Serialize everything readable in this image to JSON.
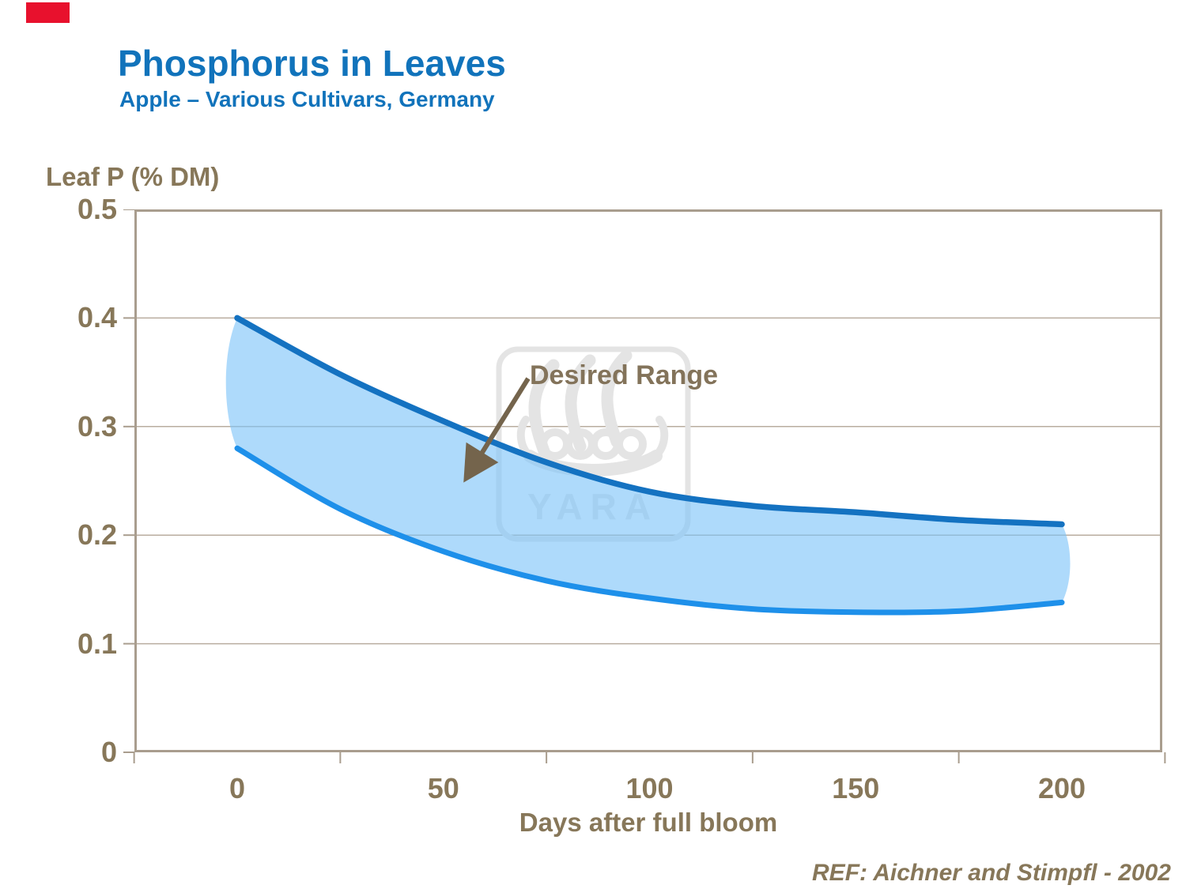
{
  "brand": {
    "red_square_color": "#e8112d",
    "watermark_text": "YARA",
    "watermark_color": "#e4e4e4"
  },
  "header": {
    "title": "Phosphorus in Leaves",
    "subtitle": "Apple – Various Cultivars, Germany",
    "title_color": "#1173bb"
  },
  "footer": {
    "ref": "REF: Aichner and Stimpfl - 2002"
  },
  "annotation": {
    "label": "Desired Range"
  },
  "chart_data": {
    "type": "area",
    "title": "Phosphorus in Leaves",
    "subtitle": "Apple – Various Cultivars, Germany",
    "ylabel": "Leaf P (% DM)",
    "xlabel": "Days after full bloom",
    "x_ticks": [
      0,
      50,
      100,
      150,
      200
    ],
    "y_ticks": [
      0.5,
      0.4,
      0.3,
      0.2,
      0.1,
      0
    ],
    "xlim": [
      -25,
      225
    ],
    "ylim": [
      0,
      0.5
    ],
    "grid": true,
    "legend": "none",
    "annotation": "Desired Range",
    "band_name": "Desired Range (shaded band between upper and lower leaf P limits)",
    "series": [
      {
        "name": "upper limit",
        "x": [
          0,
          25,
          50,
          75,
          100,
          125,
          150,
          175,
          200
        ],
        "values": [
          0.4,
          0.348,
          0.305,
          0.267,
          0.24,
          0.227,
          0.221,
          0.214,
          0.21
        ],
        "color": "#1472c1"
      },
      {
        "name": "lower limit",
        "x": [
          0,
          25,
          50,
          75,
          100,
          125,
          150,
          175,
          200
        ],
        "values": [
          0.28,
          0.224,
          0.185,
          0.158,
          0.142,
          0.132,
          0.129,
          0.13,
          0.138
        ],
        "color": "#1e90ea"
      }
    ],
    "band_fill": "#aed7f8",
    "gridline_color": "#b9ad9f",
    "axis_frame_color": "#a99d8e",
    "axis_text_color": "#877759",
    "annotation_arrow_color": "#74644c"
  }
}
